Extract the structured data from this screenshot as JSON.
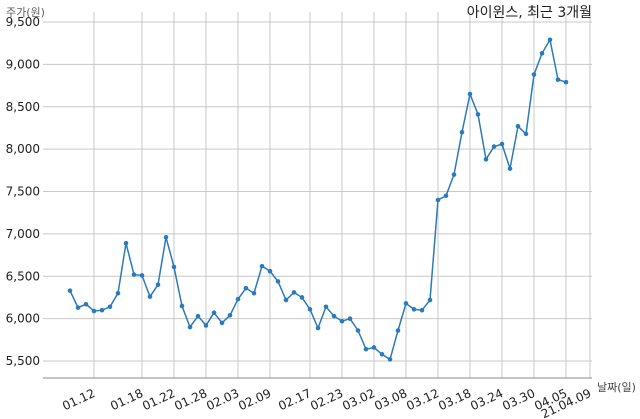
{
  "chart_data": {
    "type": "line",
    "title": "아이윈스, 최근 3개월",
    "xlabel": "날짜(일)",
    "ylabel": "주가(원)",
    "ylim": [
      5300,
      9500
    ],
    "yticks": [
      5500,
      6000,
      6500,
      7000,
      7500,
      8000,
      8500,
      9000,
      9500
    ],
    "ytick_labels": [
      "5,500",
      "6,000",
      "6,500",
      "7,000",
      "7,500",
      "8,000",
      "8,500",
      "9,000",
      "9,500"
    ],
    "xticks": [
      "01.12",
      "01.18",
      "01.22",
      "01.28",
      "02.03",
      "02.09",
      "02.17",
      "02.23",
      "03.02",
      "03.08",
      "03.12",
      "03.18",
      "03.24",
      "03.30",
      "04.05",
      "21.04.09"
    ],
    "xtick_positions": [
      3,
      9,
      13,
      17,
      21,
      25,
      30,
      34,
      38,
      42,
      46,
      50,
      54,
      58,
      62,
      65
    ],
    "grid": true,
    "line_color": "#2b7bba",
    "grid_color": "#c8c8c8",
    "series": [
      {
        "values": [
          6330,
          6130,
          6170,
          6090,
          6100,
          6140,
          6300,
          6890,
          6520,
          6510,
          6260,
          6400,
          6960,
          6610,
          6150,
          5900,
          6030,
          5920,
          6070,
          5950,
          6040,
          6230,
          6360,
          6300,
          6620,
          6560,
          6440,
          6220,
          6310,
          6250,
          6110,
          5890,
          6140,
          6030,
          5970,
          6000,
          5860,
          5640,
          5660,
          5580,
          5520,
          5860,
          6180,
          6110,
          6100,
          6220,
          7400,
          7450,
          7700,
          8200,
          8650,
          8410,
          7880,
          8030,
          8060,
          7770,
          8270,
          8180,
          8880,
          9130,
          9290,
          8820,
          8790
        ]
      }
    ]
  }
}
